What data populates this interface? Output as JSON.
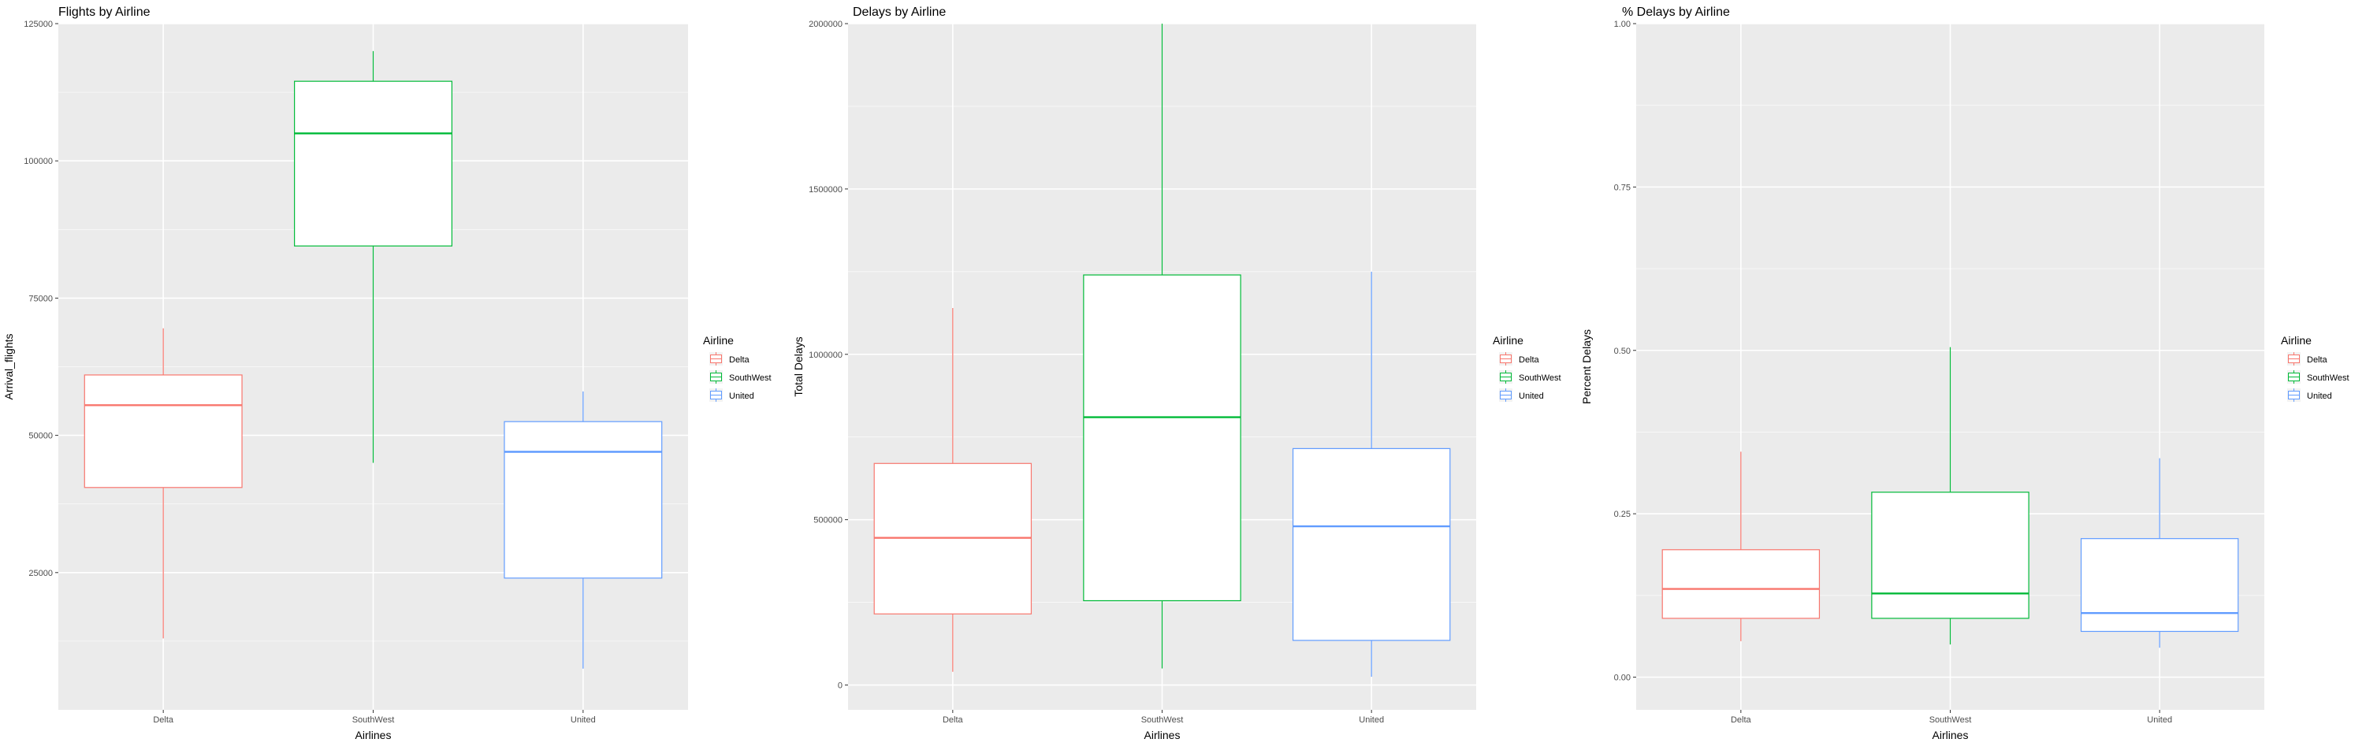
{
  "colors": {
    "Delta": "#F8766D",
    "SouthWest": "#00BA38",
    "United": "#619CFF",
    "panel_bg": "#EBEBEB",
    "grid": "#FFFFFF",
    "text": "#000000",
    "tick_text": "#4D4D4D"
  },
  "chart_data": [
    {
      "type": "boxplot",
      "title": "Flights by Airline",
      "xlabel": "Airlines",
      "ylabel": "Arrival_flights",
      "categories": [
        "Delta",
        "SouthWest",
        "United"
      ],
      "ylim": [
        0,
        125000
      ],
      "yticks": [
        25000,
        50000,
        75000,
        100000,
        125000
      ],
      "ytick_labels": [
        "25000",
        "50000",
        "75000",
        "100000",
        "125000"
      ],
      "boxes": [
        {
          "name": "Delta",
          "min": 13000,
          "q1": 40500,
          "median": 55500,
          "q3": 61000,
          "max": 69500
        },
        {
          "name": "SouthWest",
          "min": 45000,
          "q1": 84500,
          "median": 105000,
          "q3": 114500,
          "max": 120000
        },
        {
          "name": "United",
          "min": 7500,
          "q1": 24000,
          "median": 47000,
          "q3": 52500,
          "max": 58000
        }
      ],
      "legend": {
        "title": "Airline",
        "entries": [
          "Delta",
          "SouthWest",
          "United"
        ],
        "position": "right"
      },
      "grid": true
    },
    {
      "type": "boxplot",
      "title": "Delays by Airline",
      "xlabel": "Airlines",
      "ylabel": "Total Delays",
      "categories": [
        "Delta",
        "SouthWest",
        "United"
      ],
      "ylim": [
        -75000,
        2000000
      ],
      "yticks": [
        0,
        500000,
        1000000,
        1500000,
        2000000
      ],
      "ytick_labels": [
        "0",
        "500000",
        "1000000",
        "1500000",
        "2000000"
      ],
      "boxes": [
        {
          "name": "Delta",
          "min": 40000,
          "q1": 215000,
          "median": 445000,
          "q3": 670000,
          "max": 1140000
        },
        {
          "name": "SouthWest",
          "min": 50000,
          "q1": 255000,
          "median": 810000,
          "q3": 1240000,
          "max": 2000000
        },
        {
          "name": "United",
          "min": 25000,
          "q1": 135000,
          "median": 480000,
          "q3": 715000,
          "max": 1250000
        }
      ],
      "legend": {
        "title": "Airline",
        "entries": [
          "Delta",
          "SouthWest",
          "United"
        ],
        "position": "right"
      },
      "grid": true
    },
    {
      "type": "boxplot",
      "title": "% Delays by Airline",
      "xlabel": "Airlines",
      "ylabel": "Percent Delays",
      "categories": [
        "Delta",
        "SouthWest",
        "United"
      ],
      "ylim": [
        -0.05,
        1.0
      ],
      "yticks": [
        0.0,
        0.25,
        0.5,
        0.75,
        1.0
      ],
      "ytick_labels": [
        "0.00",
        "0.25",
        "0.50",
        "0.75",
        "1.00"
      ],
      "boxes": [
        {
          "name": "Delta",
          "min": 0.055,
          "q1": 0.09,
          "median": 0.135,
          "q3": 0.195,
          "max": 0.345
        },
        {
          "name": "SouthWest",
          "min": 0.05,
          "q1": 0.09,
          "median": 0.128,
          "q3": 0.283,
          "max": 0.505
        },
        {
          "name": "United",
          "min": 0.045,
          "q1": 0.07,
          "median": 0.098,
          "q3": 0.212,
          "max": 0.335
        }
      ],
      "legend": {
        "title": "Airline",
        "entries": [
          "Delta",
          "SouthWest",
          "United"
        ],
        "position": "right"
      },
      "grid": true
    }
  ]
}
